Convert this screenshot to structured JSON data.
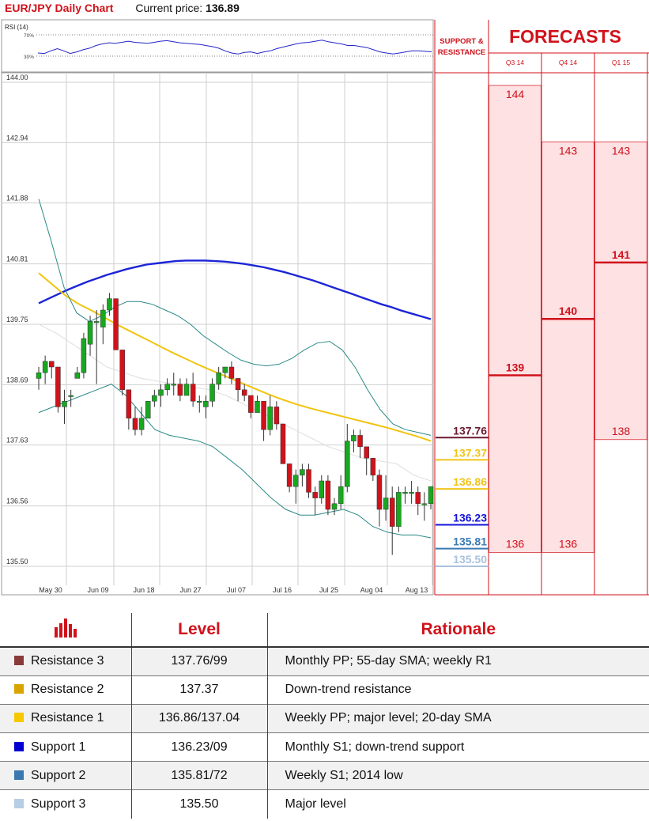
{
  "header": {
    "title": "EUR/JPY Daily Chart",
    "current_price_label": "Current price:",
    "current_price_value": "136.89"
  },
  "rsi": {
    "label": "RSI (14)",
    "level_high": "70%",
    "level_low": "30%",
    "values": [
      36,
      35,
      40,
      44,
      40,
      35,
      38,
      42,
      45,
      50,
      53,
      55,
      54,
      56,
      58,
      56,
      55,
      54,
      56,
      58,
      59,
      57,
      55,
      54,
      53,
      52,
      50,
      48,
      45,
      40,
      36,
      34,
      37,
      38,
      35,
      38,
      40,
      44,
      47,
      50,
      53,
      55,
      56,
      58,
      60,
      57,
      55,
      53,
      50,
      50,
      48,
      46,
      42,
      38,
      36,
      34,
      36,
      38,
      40,
      40,
      39,
      38
    ]
  },
  "sr_panel": {
    "title_line1": "SUPPORT &",
    "title_line2": "RESISTANCE",
    "levels": [
      {
        "value": 137.76,
        "label": "137.76",
        "color": "#6b1a2e"
      },
      {
        "value": 137.37,
        "label": "137.37",
        "color": "#f0c419"
      },
      {
        "value": 136.86,
        "label": "136.86",
        "color": "#f0c419"
      },
      {
        "value": 136.23,
        "label": "136.23",
        "color": "#1414d8"
      },
      {
        "value": 135.81,
        "label": "135.81",
        "color": "#3a7ab4"
      },
      {
        "value": 135.5,
        "label": "135.50",
        "color": "#a9c2dd"
      }
    ]
  },
  "forecasts": {
    "title": "FORECASTS",
    "quarters": [
      {
        "label": "Q3 14",
        "high": 144,
        "mid": 139,
        "low": 136,
        "high_label": "144",
        "mid_label": "139",
        "low_label": "136"
      },
      {
        "label": "Q4 14",
        "high": 143,
        "mid": 140,
        "low": 136,
        "high_label": "143",
        "mid_label": "140",
        "low_label": "136"
      },
      {
        "label": "Q1 15",
        "high": 143,
        "mid": 141,
        "low": 138,
        "high_label": "143",
        "mid_label": "141",
        "low_label": "138"
      }
    ]
  },
  "colors": {
    "brand_red": "#d0121b",
    "candle_up": "#18a81f",
    "candle_down": "#d0121b",
    "sma200": "#1c25d6",
    "sma55": "#f1c40f",
    "bollinger": "#2a8a86",
    "forecast_fill": "#fde1e3"
  },
  "chart_data": {
    "type": "candlestick",
    "title": "EUR/JPY Daily Chart",
    "yticks": [
      "144.00",
      "142.94",
      "141.88",
      "140.81",
      "139.75",
      "138.69",
      "137.63",
      "136.56",
      "135.50"
    ],
    "ylim": [
      135.4,
      144.25
    ],
    "xticks": [
      "May 30",
      "Jun 09",
      "Jun 18",
      "Jun 27",
      "Jul 07",
      "Jul 16",
      "Jul 25",
      "Aug 04",
      "Aug 13"
    ],
    "grid": true,
    "candles": [
      [
        138.8,
        139.0,
        138.6,
        138.9
      ],
      [
        138.9,
        139.2,
        138.7,
        139.1
      ],
      [
        139.1,
        139.1,
        138.8,
        139.0
      ],
      [
        139.0,
        139.0,
        138.2,
        138.3
      ],
      [
        138.3,
        138.6,
        138.0,
        138.4
      ],
      [
        138.5,
        138.6,
        138.3,
        138.5
      ],
      [
        138.8,
        139.0,
        138.8,
        138.9
      ],
      [
        138.9,
        139.6,
        138.8,
        139.5
      ],
      [
        139.4,
        139.9,
        139.2,
        139.8
      ],
      [
        139.8,
        140.0,
        138.7,
        139.8
      ],
      [
        139.7,
        140.1,
        139.4,
        140.0
      ],
      [
        140.0,
        140.3,
        139.9,
        140.2
      ],
      [
        140.2,
        140.2,
        139.3,
        139.3
      ],
      [
        139.3,
        139.3,
        138.5,
        138.6
      ],
      [
        138.6,
        138.6,
        137.9,
        138.1
      ],
      [
        138.1,
        138.3,
        137.8,
        137.9
      ],
      [
        137.9,
        138.3,
        137.8,
        138.1
      ],
      [
        138.1,
        138.4,
        138.1,
        138.4
      ],
      [
        138.4,
        138.6,
        138.3,
        138.5
      ],
      [
        138.5,
        138.7,
        138.3,
        138.6
      ],
      [
        138.6,
        138.8,
        138.5,
        138.7
      ],
      [
        138.7,
        138.9,
        138.5,
        138.7
      ],
      [
        138.7,
        138.8,
        138.4,
        138.5
      ],
      [
        138.5,
        138.8,
        138.5,
        138.7
      ],
      [
        138.7,
        138.9,
        138.3,
        138.4
      ],
      [
        138.4,
        138.5,
        138.2,
        138.4
      ],
      [
        138.3,
        138.5,
        138.1,
        138.4
      ],
      [
        138.4,
        138.8,
        138.3,
        138.7
      ],
      [
        138.7,
        139.0,
        138.6,
        138.9
      ],
      [
        138.9,
        139.0,
        138.8,
        139.0
      ],
      [
        139.0,
        139.1,
        138.7,
        138.8
      ],
      [
        138.8,
        138.8,
        138.4,
        138.6
      ],
      [
        138.6,
        138.7,
        138.4,
        138.5
      ],
      [
        138.5,
        138.5,
        138.1,
        138.2
      ],
      [
        138.2,
        138.5,
        138.2,
        138.4
      ],
      [
        138.4,
        138.4,
        137.7,
        137.9
      ],
      [
        137.9,
        138.5,
        137.8,
        138.3
      ],
      [
        138.3,
        138.4,
        137.9,
        138.0
      ],
      [
        138.0,
        138.0,
        137.3,
        137.3
      ],
      [
        137.3,
        137.3,
        136.8,
        136.9
      ],
      [
        136.9,
        137.2,
        136.6,
        137.1
      ],
      [
        137.1,
        137.3,
        136.9,
        137.2
      ],
      [
        137.2,
        137.3,
        136.7,
        136.8
      ],
      [
        136.8,
        136.9,
        136.4,
        136.7
      ],
      [
        136.7,
        137.1,
        136.6,
        137.0
      ],
      [
        137.0,
        137.1,
        136.4,
        136.5
      ],
      [
        136.5,
        136.7,
        136.4,
        136.6
      ],
      [
        136.6,
        137.1,
        136.5,
        136.9
      ],
      [
        136.9,
        138.0,
        136.8,
        137.7
      ],
      [
        137.7,
        137.9,
        137.5,
        137.8
      ],
      [
        137.8,
        137.9,
        137.4,
        137.6
      ],
      [
        137.6,
        137.6,
        137.1,
        137.4
      ],
      [
        137.4,
        137.4,
        137.0,
        137.1
      ],
      [
        137.1,
        137.2,
        136.2,
        136.5
      ],
      [
        136.5,
        137.1,
        136.3,
        136.7
      ],
      [
        136.7,
        136.9,
        135.7,
        136.2
      ],
      [
        136.2,
        136.9,
        136.1,
        136.8
      ],
      [
        136.8,
        136.9,
        136.6,
        136.8
      ],
      [
        136.8,
        137.0,
        136.6,
        136.8
      ],
      [
        136.8,
        136.9,
        136.4,
        136.6
      ],
      [
        136.6,
        136.8,
        136.3,
        136.6
      ],
      [
        136.6,
        136.9,
        136.5,
        136.9
      ]
    ],
    "series": [
      {
        "values": [
          140.12,
          140.2,
          140.28,
          140.36,
          140.43,
          140.5,
          140.56,
          140.62,
          140.67,
          140.72,
          140.76,
          140.8,
          140.82,
          140.84,
          140.86,
          140.87,
          140.87,
          140.87,
          140.86,
          140.85,
          140.83,
          140.81,
          140.78,
          140.75,
          140.71,
          140.67,
          140.62,
          140.57,
          140.52,
          140.46,
          140.4,
          140.34,
          140.28,
          140.22,
          140.16,
          140.1,
          140.05,
          139.99,
          139.94,
          139.89,
          139.84
        ]
      },
      {
        "values": [
          140.65,
          140.45,
          140.25,
          140.1,
          139.98,
          139.85,
          139.72,
          139.6,
          139.48,
          139.36,
          139.24,
          139.13,
          139.02,
          138.92,
          138.82,
          138.72,
          138.62,
          138.52,
          138.43,
          138.35,
          138.28,
          138.22,
          138.16,
          138.1,
          138.04,
          137.98,
          137.92,
          137.85,
          137.78,
          137.7
        ]
      },
      {
        "values": [
          141.95,
          141.2,
          140.4,
          139.95,
          139.8,
          139.9,
          140.05,
          140.15,
          140.15,
          140.1,
          140.0,
          139.9,
          139.75,
          139.55,
          139.4,
          139.25,
          139.12,
          139.05,
          139.02,
          139.05,
          139.15,
          139.3,
          139.42,
          139.45,
          139.3,
          139.0,
          138.6,
          138.25,
          138.0,
          137.9,
          137.85,
          137.8
        ]
      },
      {
        "values": [
          138.2,
          138.3,
          138.4,
          138.5,
          138.6,
          138.7,
          138.5,
          138.2,
          137.9,
          137.8,
          137.75,
          137.7,
          137.6,
          137.4,
          137.2,
          136.95,
          136.7,
          136.5,
          136.4,
          136.4,
          136.45,
          136.5,
          136.4,
          136.2,
          136.1,
          136.05,
          136.05,
          136.0
        ]
      },
      {
        "values": [
          139.75,
          139.6,
          139.4,
          139.2,
          139.0,
          138.9,
          138.8,
          138.75,
          138.7,
          138.65,
          138.6,
          138.5,
          138.35,
          138.2,
          138.05,
          137.9,
          137.75,
          137.6,
          137.5,
          137.4,
          137.35,
          137.3,
          137.1,
          137.0
        ]
      }
    ]
  },
  "table": {
    "headers": [
      "",
      "Level",
      "Rationale"
    ],
    "rows": [
      {
        "name": "Resistance 3",
        "level": "137.76/99",
        "rationale": "Monthly PP; 55-day SMA; weekly R1",
        "color": "#8b3a3a"
      },
      {
        "name": "Resistance 2",
        "level": "137.37",
        "rationale": "Down-trend resistance",
        "color": "#d9a400"
      },
      {
        "name": "Resistance 1",
        "level": "136.86/137.04",
        "rationale": "Weekly PP; major level; 20-day SMA",
        "color": "#f5c800"
      },
      {
        "name": "Support 1",
        "level": "136.23/09",
        "rationale": "Monthly S1; down-trend support",
        "color": "#0000d0"
      },
      {
        "name": "Support 2",
        "level": "135.81/72",
        "rationale": "Weekly S1; 2014 low",
        "color": "#3a78b0"
      },
      {
        "name": "Support 3",
        "level": "135.50",
        "rationale": "Major level",
        "color": "#b7cde6"
      }
    ]
  }
}
